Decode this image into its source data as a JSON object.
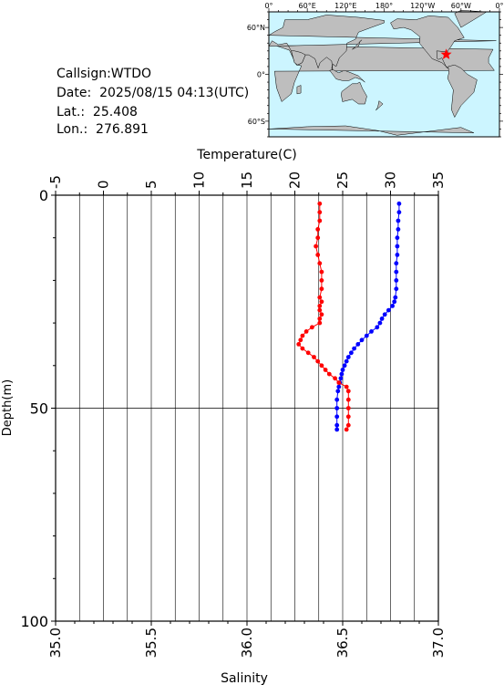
{
  "station": {
    "callsign": "Callsign:WTDO",
    "date": "Date:  2025/08/15 04:13(UTC)",
    "lat": "Lat.:  25.408",
    "lon": "Lon.:  276.891"
  },
  "map": {
    "lon_labels": [
      "0°",
      "60°E",
      "120°E",
      "180°",
      "120°W",
      "60°W",
      "0°"
    ],
    "lat_labels": [
      "60°N",
      "0°",
      "60°S"
    ],
    "ocean_color": "#ccf5ff",
    "land_color": "#bebebe",
    "marker": {
      "lat": 25.408,
      "lon": 276.891,
      "color": "#ff0000",
      "symbol": "star"
    }
  },
  "chart_data": {
    "type": "line",
    "top_axis_label": "Temperature(C)",
    "bottom_axis_label": "Salinity",
    "left_axis_label": "Depth(m)",
    "temperature_range": [
      -5,
      35
    ],
    "temperature_ticks": [
      "-5",
      "0",
      "5",
      "10",
      "15",
      "20",
      "25",
      "30",
      "35"
    ],
    "salinity_range": [
      35.0,
      37.0
    ],
    "salinity_ticks": [
      "35.0",
      "35.5",
      "36.0",
      "36.5",
      "37.0"
    ],
    "depth_range": [
      0,
      100
    ],
    "depth_ticks": [
      "0",
      "50",
      "100"
    ],
    "grid": true,
    "series": [
      {
        "color": "#0000ff",
        "axis": "top",
        "depth": [
          2,
          4,
          6,
          8,
          10,
          12,
          14,
          16,
          18,
          20,
          22,
          24,
          25,
          26,
          27,
          28,
          29,
          30,
          31,
          32,
          33,
          34,
          35,
          36,
          37,
          38,
          39,
          40,
          41,
          42,
          43,
          44,
          45,
          46,
          48,
          50,
          52,
          54,
          55
        ],
        "values": [
          30.9,
          30.9,
          30.8,
          30.8,
          30.7,
          30.7,
          30.7,
          30.6,
          30.6,
          30.6,
          30.6,
          30.5,
          30.4,
          30.2,
          29.8,
          29.4,
          29.1,
          28.9,
          28.6,
          28.0,
          27.5,
          27.0,
          26.6,
          26.2,
          25.9,
          25.6,
          25.4,
          25.2,
          25.0,
          24.9,
          24.8,
          24.7,
          24.6,
          24.5,
          24.4,
          24.4,
          24.4,
          24.4,
          24.4
        ]
      },
      {
        "color": "#ff0000",
        "axis": "bottom",
        "depth": [
          2,
          4,
          6,
          8,
          10,
          12,
          14,
          16,
          18,
          20,
          22,
          24,
          25,
          26,
          27,
          28,
          29,
          30,
          31,
          32,
          33,
          34,
          35,
          36,
          37,
          38,
          39,
          40,
          41,
          42,
          43,
          44,
          45,
          46,
          48,
          50,
          52,
          54,
          55
        ],
        "values": [
          36.38,
          36.38,
          36.38,
          36.37,
          36.37,
          36.36,
          36.37,
          36.38,
          36.39,
          36.39,
          36.39,
          36.38,
          36.39,
          36.38,
          36.38,
          36.39,
          36.38,
          36.38,
          36.34,
          36.31,
          36.29,
          36.28,
          36.27,
          36.29,
          36.32,
          36.35,
          36.37,
          36.39,
          36.41,
          36.43,
          36.46,
          36.48,
          36.52,
          36.53,
          36.53,
          36.53,
          36.53,
          36.53,
          36.52
        ]
      }
    ]
  }
}
